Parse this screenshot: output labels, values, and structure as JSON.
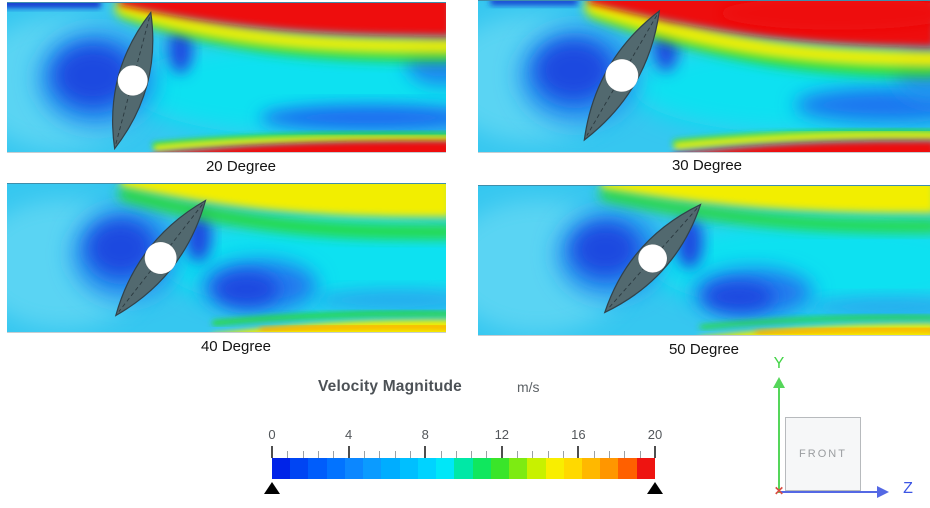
{
  "figure": {
    "panels": [
      {
        "label": "20 Degree",
        "angle_deg": 20
      },
      {
        "label": "30 Degree",
        "angle_deg": 30
      },
      {
        "label": "40 Degree",
        "angle_deg": 40
      },
      {
        "label": "50 Degree",
        "angle_deg": 50
      }
    ],
    "legend": {
      "title": "Velocity Magnitude",
      "units": "m/s",
      "min": 0,
      "max": 20,
      "major_tick_labels": [
        "0",
        "4",
        "8",
        "12",
        "16",
        "20"
      ],
      "minor_tick_step": 0.8,
      "segment_colors": [
        "#0023e8",
        "#0045f3",
        "#005dfb",
        "#0273ff",
        "#0c87ff",
        "#0b9bff",
        "#00adff",
        "#00bfff",
        "#00d3ff",
        "#00e7f8",
        "#00e8a6",
        "#10e75e",
        "#3ae52a",
        "#7deb12",
        "#c8f100",
        "#f9ee00",
        "#ffd900",
        "#ffb800",
        "#ff9600",
        "#ff6000",
        "#ee1411"
      ],
      "endpoint_marker_color": "#000000"
    },
    "triad": {
      "y_label": "Y",
      "z_label": "Z",
      "x_label": "✕",
      "front_label": "FRONT",
      "y_color": "#43d447",
      "z_color": "#3c55e4",
      "x_color": "#d94d42"
    }
  },
  "chart_data": {
    "type": "heatmap",
    "title": "Velocity Magnitude",
    "units": "m/s",
    "flow_direction": "left to right",
    "colorbar": {
      "min": 0,
      "max": 20,
      "major_ticks": [
        0,
        4,
        8,
        12,
        16,
        20
      ],
      "minor_tick_step": 0.8,
      "n_segments": 21,
      "orientation": "horizontal",
      "endpoint_markers": "black triangles at 0 and 20"
    },
    "panels": [
      {
        "label": "20 Degree",
        "valve_opening_angle_deg": 20,
        "flow": "Narrow high-velocity (~18-20 m/s, red) jets hug the top and bottom walls downstream of the tilted disc; low-velocity (~2-6 m/s, dark blue) zones sit upstream-left of the disc and behind it; mid-channel wake ~8-10 m/s (cyan)."
      },
      {
        "label": "30 Degree",
        "valve_opening_angle_deg": 30,
        "flow": "Strong ~20 m/s (red) jet over the top edge spreading far downstream with a thick yellow shear layer; bottom-wall red jet starts at the disc tip; wake ~8-10 m/s with blue low-speed pockets."
      },
      {
        "label": "40 Degree",
        "valve_opening_angle_deg": 40,
        "flow": "Peak velocities reduced to ~14-16 m/s (yellow) along top and bottom walls; broad cyan ~8-10 m/s wake; enlarged dark-blue recirculation on the lee side of the disc."
      },
      {
        "label": "50 Degree",
        "valve_opening_angle_deg": 50,
        "flow": "Thinner ~14-16 m/s yellow bands along the walls; largest low-velocity (blue) separation region behind the nearly-closed disc; upstream flow ~6-8 m/s light blue."
      }
    ]
  }
}
